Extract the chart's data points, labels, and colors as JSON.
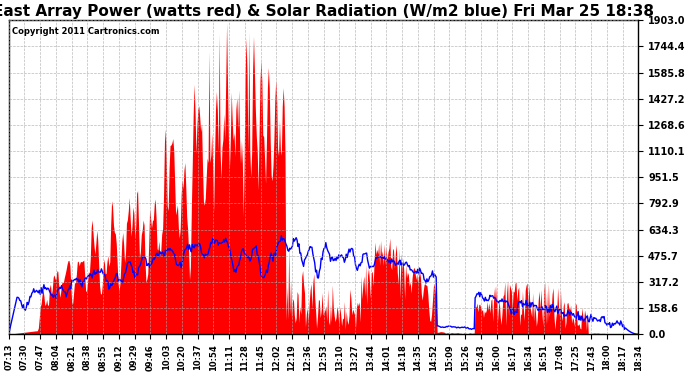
{
  "title": "East Array Power (watts red) & Solar Radiation (W/m2 blue) Fri Mar 25 18:38",
  "copyright": "Copyright 2011 Cartronics.com",
  "yticks": [
    0.0,
    158.6,
    317.2,
    475.7,
    634.3,
    792.9,
    951.5,
    1110.1,
    1268.6,
    1427.2,
    1585.8,
    1744.4,
    1903.0
  ],
  "ymin": 0.0,
  "ymax": 1903.0,
  "xtick_labels": [
    "07:13",
    "07:30",
    "07:47",
    "08:04",
    "08:21",
    "08:38",
    "08:55",
    "09:12",
    "09:29",
    "09:46",
    "10:03",
    "10:20",
    "10:37",
    "10:54",
    "11:11",
    "11:28",
    "11:45",
    "12:02",
    "12:19",
    "12:36",
    "12:53",
    "13:10",
    "13:27",
    "13:44",
    "14:01",
    "14:18",
    "14:35",
    "14:52",
    "15:09",
    "15:26",
    "15:43",
    "16:00",
    "16:17",
    "16:34",
    "16:51",
    "17:08",
    "17:25",
    "17:43",
    "18:00",
    "18:17",
    "18:34"
  ],
  "background_color": "#ffffff",
  "plot_bg_color": "#ffffff",
  "title_fontsize": 11,
  "grid_color": "#aaaaaa",
  "red_color": "#ff0000",
  "blue_color": "#0000ff"
}
